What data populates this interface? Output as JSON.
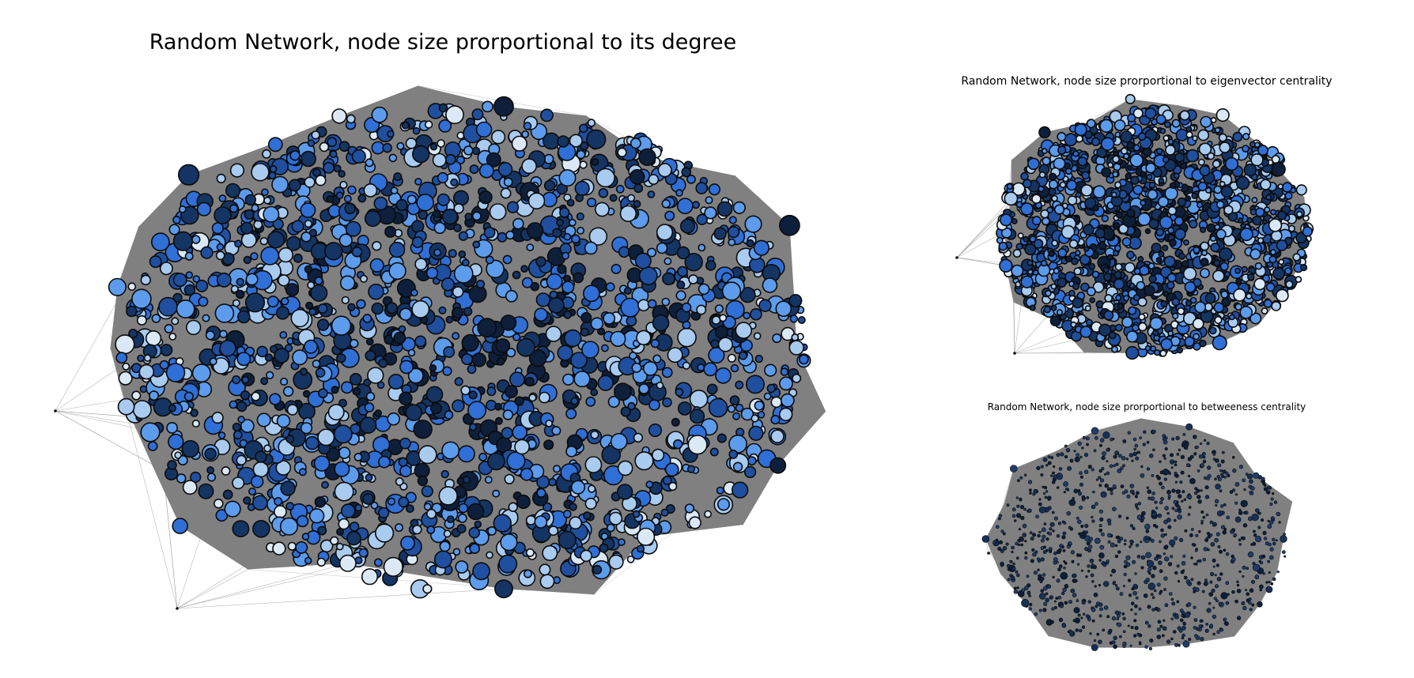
{
  "figure": {
    "panels": [
      {
        "id": "degree",
        "title": "Random Network, node size prorportional to its degree",
        "node_fill_palette": [
          "#dbe9f7",
          "#a9cbf0",
          "#5d9cec",
          "#2f6fd6",
          "#1f4f9e",
          "#143463",
          "#0d1f3a"
        ],
        "node_outline": "#0b0b0b",
        "edge_color": "#808080"
      },
      {
        "id": "eigenvector",
        "title": "Random Network, node size prorportional to eigenvector centrality",
        "node_fill_palette": [
          "#dbe9f7",
          "#a9cbf0",
          "#5d9cec",
          "#2f6fd6",
          "#1f4f9e",
          "#143463",
          "#0d1f3a"
        ],
        "node_outline": "#0b0b0b",
        "edge_color": "#808080"
      },
      {
        "id": "betweenness",
        "title": "Random Network, node size prorportional to betweeness centrality",
        "node_fill_palette": [
          "#1f3c6b",
          "#16305a",
          "#0d1f3a"
        ],
        "node_outline": "#0b0b0b",
        "edge_color": "#808080"
      }
    ]
  }
}
